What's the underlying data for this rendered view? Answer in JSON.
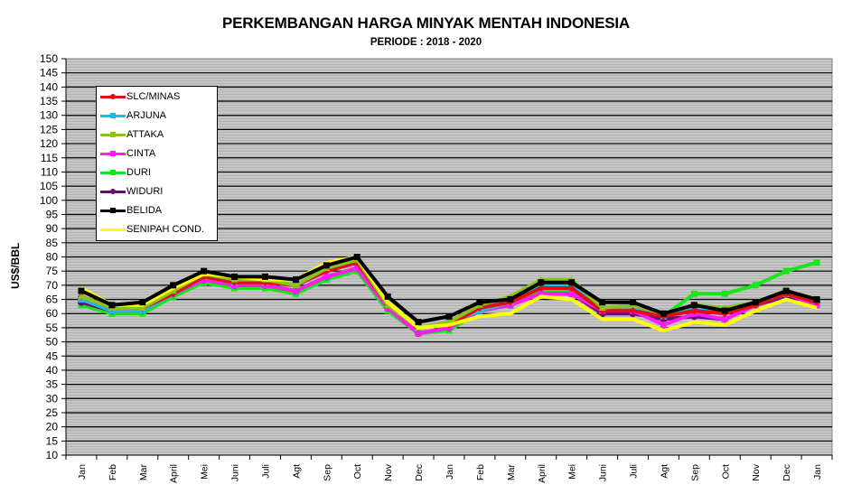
{
  "chart_data": {
    "type": "line",
    "title": "PERKEMBANGAN HARGA MINYAK MENTAH INDONESIA",
    "subtitle": "PERIODE  : 2018 - 2020",
    "xlabel": "",
    "ylabel": "US$/BBL",
    "ylim": [
      10,
      150
    ],
    "ytick_step": 5,
    "yticks": [
      10,
      15,
      20,
      25,
      30,
      35,
      40,
      45,
      50,
      55,
      60,
      65,
      70,
      75,
      80,
      85,
      90,
      95,
      100,
      105,
      110,
      115,
      120,
      125,
      130,
      135,
      140,
      145,
      150
    ],
    "grid": true,
    "legend_position": "upper-left-inside",
    "categories": [
      "Jan",
      "Feb",
      "Mar",
      "April",
      "Mei",
      "Juni",
      "Juli",
      "Agt",
      "Sep",
      "Oct",
      "Nov",
      "Dec",
      "Jan",
      "Feb",
      "Mar",
      "April",
      "Mei",
      "Juni",
      "Juli",
      "Agt",
      "Sep",
      "Oct",
      "Nov",
      "Dec",
      "Jan"
    ],
    "series": [
      {
        "name": "SLC/MINAS",
        "color": "#e01010",
        "marker": "diamond",
        "values": [
          66,
          62,
          62,
          67,
          73,
          71,
          71,
          70,
          75,
          78,
          63,
          55,
          56,
          62,
          64,
          69,
          69,
          61,
          61,
          59,
          61,
          60,
          63,
          67,
          64
        ]
      },
      {
        "name": "ARJUNA",
        "color": "#22b8e8",
        "marker": "square",
        "values": [
          65,
          61,
          61,
          67,
          73,
          71,
          71,
          70,
          75,
          79,
          63,
          55,
          57,
          61,
          64,
          70,
          70,
          62,
          62,
          59,
          62,
          61,
          64,
          67,
          65
        ]
      },
      {
        "name": "ATTAKA",
        "color": "#8cc21c",
        "marker": "triangle",
        "values": [
          66,
          62,
          62,
          68,
          74,
          72,
          72,
          70,
          76,
          79,
          63,
          55,
          57,
          63,
          66,
          72,
          72,
          62,
          63,
          60,
          63,
          62,
          64,
          68,
          65
        ]
      },
      {
        "name": "CINTA",
        "color": "#ff1cf0",
        "marker": "square",
        "values": [
          65,
          61,
          61,
          67,
          72,
          70,
          70,
          68,
          73,
          76,
          62,
          53,
          55,
          61,
          63,
          67,
          67,
          61,
          61,
          56,
          60,
          58,
          63,
          67,
          63
        ]
      },
      {
        "name": "DURI",
        "color": "#19e619",
        "marker": "square",
        "values": [
          63,
          60,
          60,
          66,
          71,
          69,
          69,
          67,
          72,
          75,
          61,
          53,
          54,
          61,
          63,
          68,
          68,
          60,
          61,
          59,
          67,
          67,
          70,
          75,
          78
        ]
      },
      {
        "name": "WIDURI",
        "color": "#6a0a78",
        "marker": "circle",
        "values": [
          64,
          61,
          61,
          67,
          72,
          70,
          70,
          68,
          73,
          76,
          62,
          53,
          55,
          61,
          63,
          67,
          67,
          60,
          60,
          58,
          59,
          58,
          63,
          66,
          64
        ]
      },
      {
        "name": "BELIDA",
        "color": "#000000",
        "marker": "square",
        "values": [
          68,
          63,
          64,
          70,
          75,
          73,
          73,
          72,
          77,
          80,
          66,
          57,
          59,
          64,
          65,
          71,
          71,
          64,
          64,
          60,
          63,
          61,
          64,
          68,
          65
        ]
      },
      {
        "name": "SENIPAH COND.",
        "color": "#ffff00",
        "marker": "none",
        "values": [
          69,
          63,
          63,
          69,
          74,
          73,
          72,
          72,
          78,
          80,
          64,
          55,
          56,
          59,
          60,
          66,
          65,
          58,
          58,
          54,
          57,
          56,
          61,
          65,
          62
        ]
      }
    ]
  },
  "colors": {
    "plot_background": "#c0c0c0",
    "gridline": "#000000",
    "legend_background": "#ffffff"
  }
}
